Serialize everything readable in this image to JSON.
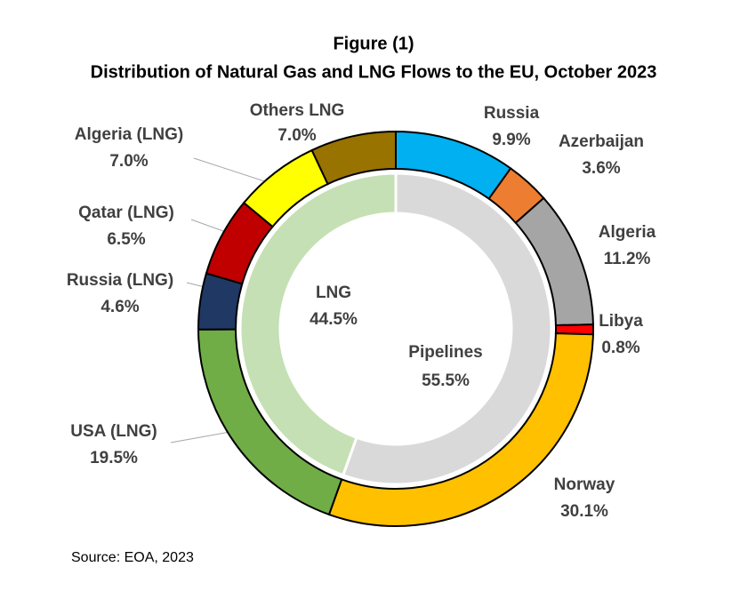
{
  "chart_data": {
    "type": "nested-donut",
    "title": "Figure (1)",
    "subtitle": "Distribution of Natural Gas and LNG Flows to the EU, October 2023",
    "source": "Source: EOA, 2023",
    "inner": {
      "categories": [
        "Pipelines",
        "LNG"
      ],
      "values": [
        55.5,
        44.5
      ],
      "value_labels": [
        "55.5%",
        "44.5%"
      ],
      "colors": [
        "#d9d9d9",
        "#c5e0b4"
      ]
    },
    "outer": {
      "categories": [
        "Russia",
        "Azerbaijan",
        "Algeria",
        "Libya",
        "Norway",
        "USA (LNG)",
        "Russia (LNG)",
        "Qatar (LNG)",
        "Algeria  (LNG)",
        "Others LNG"
      ],
      "values": [
        9.9,
        3.6,
        11.2,
        0.8,
        30.1,
        19.5,
        4.6,
        6.5,
        7.0,
        7.0
      ],
      "value_labels": [
        "9.9%",
        "3.6%",
        "11.2%",
        "0.8%",
        "30.1%",
        "19.5%",
        "4.6%",
        "6.5%",
        "7.0%",
        "7.0%"
      ],
      "colors": [
        "#00b0f0",
        "#ed7d31",
        "#a5a5a5",
        "#ff0000",
        "#ffc000",
        "#70ad47",
        "#203864",
        "#c00000",
        "#ffff00",
        "#997300"
      ]
    }
  }
}
